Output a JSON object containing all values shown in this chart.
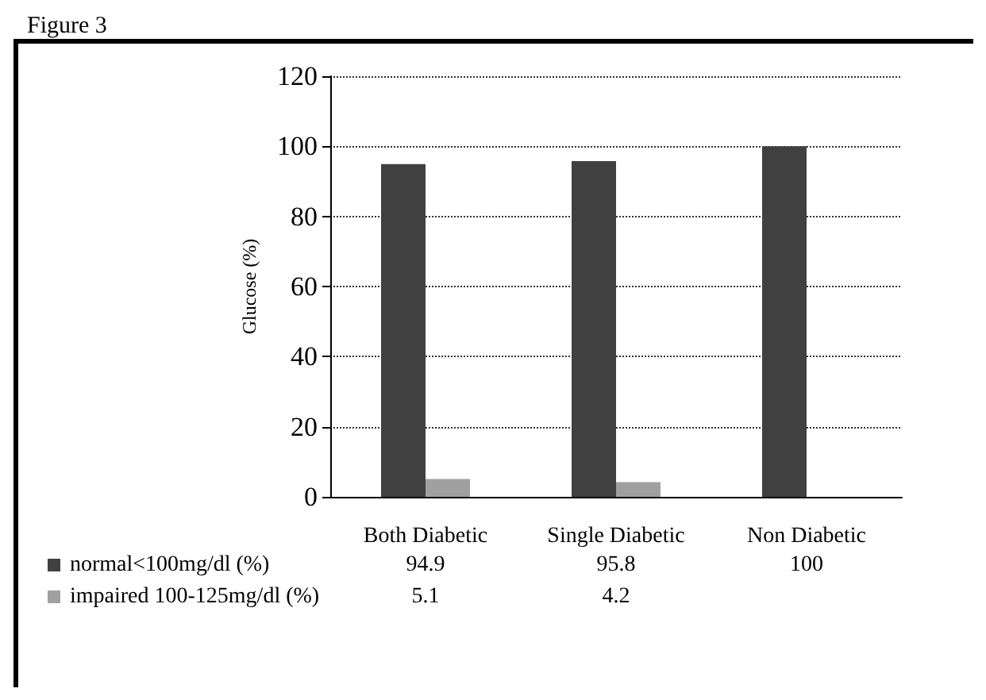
{
  "chart_data": {
    "type": "bar",
    "title": "Figure 3",
    "ylabel": "Glucose (%)",
    "categories": [
      "Both Diabetic",
      "Single Diabetic",
      "Non Diabetic"
    ],
    "series": [
      {
        "name": "normal<100mg/dl (%)",
        "color": "#404040",
        "values": [
          94.9,
          95.8,
          100
        ]
      },
      {
        "name": "impaired 100-125mg/dl (%)",
        "color": "#a0a0a0",
        "values": [
          5.1,
          4.2,
          null
        ]
      }
    ],
    "ylim": [
      0,
      120
    ],
    "yticks": [
      0,
      20,
      40,
      60,
      80,
      100,
      120
    ],
    "grid": "y",
    "legend": "bottom",
    "data_labels": true
  }
}
